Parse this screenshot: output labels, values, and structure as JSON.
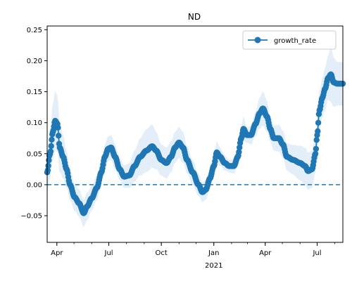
{
  "chart_data": {
    "type": "line",
    "title": "ND",
    "xlabel": "",
    "ylabel": "",
    "x_tick_labels": [
      "Apr",
      "Jul",
      "Oct",
      "Jan",
      "Apr",
      "Jul"
    ],
    "x_tick_dates": [
      "2020-04-01",
      "2020-07-01",
      "2020-10-01",
      "2021-01-01",
      "2021-04-01",
      "2021-07-01"
    ],
    "x_secondary_label": "2021",
    "x_range": [
      "2020-03-15",
      "2021-08-15"
    ],
    "y_ticks": [
      -0.05,
      0.0,
      0.05,
      0.1,
      0.15,
      0.2,
      0.25
    ],
    "y_tick_labels": [
      "−0.05",
      "0.00",
      "0.05",
      "0.10",
      "0.15",
      "0.20",
      "0.25"
    ],
    "ylim": [
      -0.093,
      0.256
    ],
    "reference_line": {
      "y": 0.0,
      "style": "dashed",
      "color": "#1f77b4"
    },
    "band_color": "#dbe8f5",
    "series": [
      {
        "name": "growth_rate",
        "color": "#1f77b4",
        "marker": "circle",
        "points": [
          [
            "2020-03-15",
            0.02
          ],
          [
            "2020-03-20",
            0.05
          ],
          [
            "2020-03-25",
            0.085
          ],
          [
            "2020-03-29",
            0.103
          ],
          [
            "2020-04-02",
            0.098
          ],
          [
            "2020-04-06",
            0.06
          ],
          [
            "2020-04-12",
            0.045
          ],
          [
            "2020-04-18",
            0.025
          ],
          [
            "2020-04-24",
            0.0
          ],
          [
            "2020-05-02",
            -0.02
          ],
          [
            "2020-05-10",
            -0.03
          ],
          [
            "2020-05-18",
            -0.046
          ],
          [
            "2020-05-24",
            -0.035
          ],
          [
            "2020-06-01",
            -0.022
          ],
          [
            "2020-06-10",
            -0.005
          ],
          [
            "2020-06-18",
            0.02
          ],
          [
            "2020-06-24",
            0.045
          ],
          [
            "2020-06-30",
            0.058
          ],
          [
            "2020-07-05",
            0.06
          ],
          [
            "2020-07-12",
            0.045
          ],
          [
            "2020-07-20",
            0.025
          ],
          [
            "2020-07-28",
            0.013
          ],
          [
            "2020-08-06",
            0.015
          ],
          [
            "2020-08-15",
            0.03
          ],
          [
            "2020-08-25",
            0.045
          ],
          [
            "2020-09-05",
            0.055
          ],
          [
            "2020-09-15",
            0.062
          ],
          [
            "2020-09-22",
            0.055
          ],
          [
            "2020-10-01",
            0.04
          ],
          [
            "2020-10-10",
            0.035
          ],
          [
            "2020-10-18",
            0.045
          ],
          [
            "2020-10-25",
            0.06
          ],
          [
            "2020-11-01",
            0.068
          ],
          [
            "2020-11-08",
            0.06
          ],
          [
            "2020-11-15",
            0.04
          ],
          [
            "2020-11-25",
            0.02
          ],
          [
            "2020-12-05",
            0.0
          ],
          [
            "2020-12-12",
            -0.012
          ],
          [
            "2020-12-18",
            -0.008
          ],
          [
            "2020-12-25",
            0.01
          ],
          [
            "2021-01-01",
            0.03
          ],
          [
            "2021-01-06",
            0.052
          ],
          [
            "2021-01-12",
            0.045
          ],
          [
            "2021-01-20",
            0.035
          ],
          [
            "2021-01-28",
            0.03
          ],
          [
            "2021-02-05",
            0.03
          ],
          [
            "2021-02-12",
            0.045
          ],
          [
            "2021-02-18",
            0.075
          ],
          [
            "2021-02-22",
            0.09
          ],
          [
            "2021-02-28",
            0.08
          ],
          [
            "2021-03-07",
            0.08
          ],
          [
            "2021-03-15",
            0.098
          ],
          [
            "2021-03-22",
            0.115
          ],
          [
            "2021-03-28",
            0.123
          ],
          [
            "2021-04-04",
            0.11
          ],
          [
            "2021-04-10",
            0.09
          ],
          [
            "2021-04-16",
            0.075
          ],
          [
            "2021-04-25",
            0.075
          ],
          [
            "2021-05-02",
            0.065
          ],
          [
            "2021-05-09",
            0.045
          ],
          [
            "2021-05-20",
            0.04
          ],
          [
            "2021-06-01",
            0.035
          ],
          [
            "2021-06-10",
            0.03
          ],
          [
            "2021-06-15",
            0.022
          ],
          [
            "2021-06-22",
            0.025
          ],
          [
            "2021-06-28",
            0.05
          ],
          [
            "2021-07-01",
            0.08
          ],
          [
            "2021-07-05",
            0.12
          ],
          [
            "2021-07-10",
            0.14
          ],
          [
            "2021-07-15",
            0.155
          ],
          [
            "2021-07-20",
            0.172
          ],
          [
            "2021-07-25",
            0.178
          ],
          [
            "2021-07-30",
            0.165
          ],
          [
            "2021-08-05",
            0.163
          ],
          [
            "2021-08-15",
            0.163
          ]
        ]
      }
    ],
    "band_halfwidth": [
      0.03,
      0.04,
      0.045,
      0.048,
      0.045,
      0.04,
      0.035,
      0.03,
      0.025,
      0.022,
      0.022,
      0.022,
      0.022,
      0.02,
      0.02,
      0.02,
      0.02,
      0.02,
      0.02,
      0.02,
      0.018,
      0.018,
      0.02,
      0.025,
      0.03,
      0.035,
      0.035,
      0.03,
      0.025,
      0.025,
      0.025,
      0.025,
      0.025,
      0.025,
      0.022,
      0.02,
      0.018,
      0.016,
      0.016,
      0.016,
      0.018,
      0.018,
      0.015,
      0.012,
      0.01,
      0.012,
      0.015,
      0.02,
      0.02,
      0.012,
      0.015,
      0.02,
      0.025,
      0.028,
      0.025,
      0.02,
      0.02,
      0.022,
      0.022,
      0.022,
      0.024,
      0.028,
      0.03,
      0.03,
      0.03,
      0.03,
      0.03,
      0.032,
      0.032,
      0.034,
      0.035,
      0.045,
      0.04,
      0.035,
      0.035
    ],
    "grid": false,
    "legend": {
      "placement": "top-right",
      "entries": [
        "growth_rate"
      ]
    }
  }
}
